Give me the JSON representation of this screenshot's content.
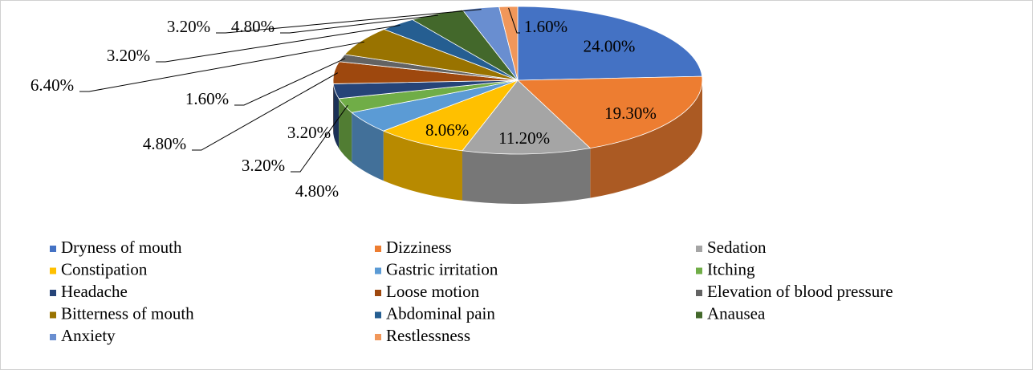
{
  "chart_data": {
    "type": "pie",
    "categories": [
      "Dryness of mouth",
      "Dizziness",
      "Sedation",
      "Constipation",
      "Gastric irritation",
      "Itching",
      "Headache",
      "Loose motion",
      "Elevation of blood pressure",
      "Bitterness of mouth",
      "Abdominal pain",
      "Anausea",
      "Anxiety",
      "Restlessness"
    ],
    "values": [
      24.0,
      19.3,
      11.2,
      8.06,
      4.8,
      3.2,
      3.2,
      4.8,
      1.6,
      6.4,
      3.2,
      4.8,
      3.2,
      1.6
    ],
    "value_labels": [
      "24.00%",
      "19.30%",
      "11.20%",
      "8.06%",
      "4.80%",
      "3.20%",
      "3.20%",
      "4.80%",
      "1.60%",
      "6.40%",
      "3.20%",
      "4.80%",
      "3.20%",
      "1.60%"
    ],
    "colors": [
      "#4472c4",
      "#ed7d31",
      "#a5a5a5",
      "#ffc000",
      "#5b9bd5",
      "#70ad47",
      "#264478",
      "#9e480e",
      "#636363",
      "#997300",
      "#255e91",
      "#43682b",
      "#698ed0",
      "#f1975a"
    ],
    "legend": "bottom"
  }
}
